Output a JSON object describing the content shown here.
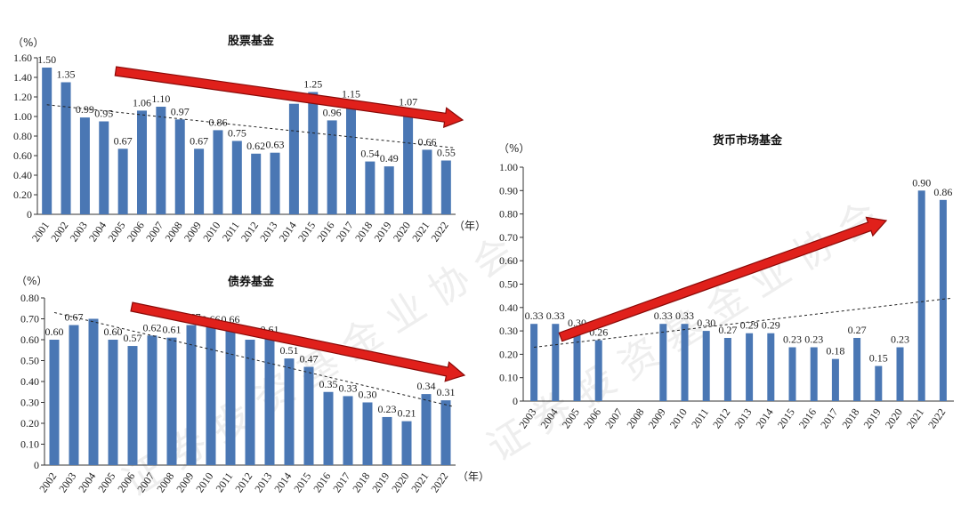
{
  "chart_data": [
    {
      "id": "stock",
      "type": "bar",
      "title": "股票基金",
      "ylabel": "（%）",
      "xlabel": "（年）",
      "ylim": [
        0,
        1.6
      ],
      "yticks": [
        "0",
        "0.20",
        "0.40",
        "0.60",
        "0.80",
        "1.00",
        "1.20",
        "1.40",
        "1.60"
      ],
      "categories": [
        "2001",
        "2002",
        "2003",
        "2004",
        "2005",
        "2006",
        "2007",
        "2008",
        "2009",
        "2010",
        "2011",
        "2012",
        "2013",
        "2014",
        "2015",
        "2016",
        "2017",
        "2018",
        "2019",
        "2020",
        "2021",
        "2022"
      ],
      "values": [
        1.5,
        1.35,
        0.99,
        0.95,
        0.67,
        1.06,
        1.1,
        0.97,
        0.67,
        0.86,
        0.75,
        0.62,
        0.63,
        1.13,
        1.25,
        0.96,
        1.15,
        0.54,
        0.49,
        1.07,
        0.66,
        0.55
      ],
      "labels": [
        "1.50",
        "1.35",
        "0.99",
        "0.95",
        "0.67",
        "1.06",
        "1.10",
        "0.97",
        "0.67",
        "0.86",
        "0.75",
        "0.62",
        "0.63",
        "",
        "1.25",
        "0.96",
        "1.15",
        "0.54",
        "0.49",
        "1.07",
        "0.66",
        "0.55"
      ],
      "trendline": [
        1.12,
        0.68
      ],
      "bar_color": "#4a77b4"
    },
    {
      "id": "bond",
      "type": "bar",
      "title": "债券基金",
      "ylabel": "（%）",
      "xlabel": "（年）",
      "ylim": [
        0,
        0.8
      ],
      "yticks": [
        "0",
        "0.10",
        "0.20",
        "0.30",
        "0.40",
        "0.50",
        "0.60",
        "0.70",
        "0.80"
      ],
      "categories": [
        "2002",
        "2003",
        "2004",
        "2005",
        "2006",
        "2007",
        "2008",
        "2009",
        "2010",
        "2011",
        "2012",
        "2013",
        "2014",
        "2015",
        "2016",
        "2017",
        "2018",
        "2019",
        "2020",
        "2021",
        "2022"
      ],
      "values": [
        0.6,
        0.67,
        0.7,
        0.6,
        0.57,
        0.62,
        0.61,
        0.67,
        0.66,
        0.66,
        0.6,
        0.61,
        0.51,
        0.47,
        0.35,
        0.33,
        0.3,
        0.23,
        0.21,
        0.34,
        0.31
      ],
      "labels": [
        "0.60",
        "0.67",
        "",
        "0.60",
        "0.57",
        "0.62",
        "0.61",
        "0.67",
        "0.66",
        "0.66",
        "",
        "0.61",
        "0.51",
        "0.47",
        "0.35",
        "0.33",
        "0.30",
        "0.23",
        "0.21",
        "0.34",
        "0.31"
      ],
      "trendline": [
        0.73,
        0.28
      ],
      "bar_color": "#4a77b4"
    },
    {
      "id": "money",
      "type": "bar",
      "title": "货币市场基金",
      "ylabel": "（%）",
      "xlabel": "",
      "ylim": [
        0,
        1.0
      ],
      "yticks": [
        "0",
        "0.10",
        "0.20",
        "0.30",
        "0.40",
        "0.50",
        "0.60",
        "0.70",
        "0.80",
        "0.90",
        "1.00"
      ],
      "categories": [
        "2003",
        "2004",
        "2005",
        "2006",
        "2007",
        "2008",
        "2009",
        "2010",
        "2011",
        "2012",
        "2013",
        "2014",
        "2015",
        "2016",
        "2017",
        "2018",
        "2019",
        "2020",
        "2021",
        "2022"
      ],
      "values": [
        0.33,
        0.33,
        0.3,
        0.26,
        null,
        null,
        0.33,
        0.33,
        0.3,
        0.27,
        0.29,
        0.29,
        0.23,
        0.23,
        0.18,
        0.27,
        0.15,
        0.23,
        0.9,
        0.86
      ],
      "labels": [
        "0.33",
        "0.33",
        "0.30",
        "0.26",
        "",
        "",
        "0.33",
        "0.33",
        "0.30",
        "0.27",
        "0.29",
        "0.29",
        "0.23",
        "0.23",
        "0.18",
        "0.27",
        "0.15",
        "0.23",
        "0.90",
        "0.86"
      ],
      "trendline": [
        0.23,
        0.44
      ],
      "bar_color": "#4a77b4"
    }
  ],
  "colors": {
    "bar": "#4a77b4",
    "arrow": "#e0201b",
    "arrow_edge": "#8a0a08",
    "trend": "#222222"
  }
}
